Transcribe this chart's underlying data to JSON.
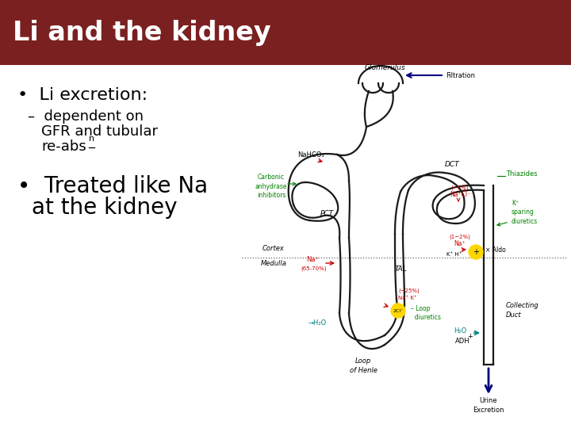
{
  "title": "Li and the kidney",
  "title_bg_color": "#7B2020",
  "title_text_color": "#FFFFFF",
  "slide_bg_color": "#FFFFFF",
  "bullet1": "Li excretion:",
  "sub_bullet1_line1": "– dependent on",
  "sub_bullet1_line2": "  GFR and tubular",
  "sub_bullet1_line3": "  re-abs",
  "bullet2_line1": "Treated like Na",
  "bullet2_line2": "at the kidney",
  "title_fontsize": 24,
  "bullet_fontsize": 16,
  "sub_bullet_fontsize": 13,
  "bullet2_fontsize": 20
}
